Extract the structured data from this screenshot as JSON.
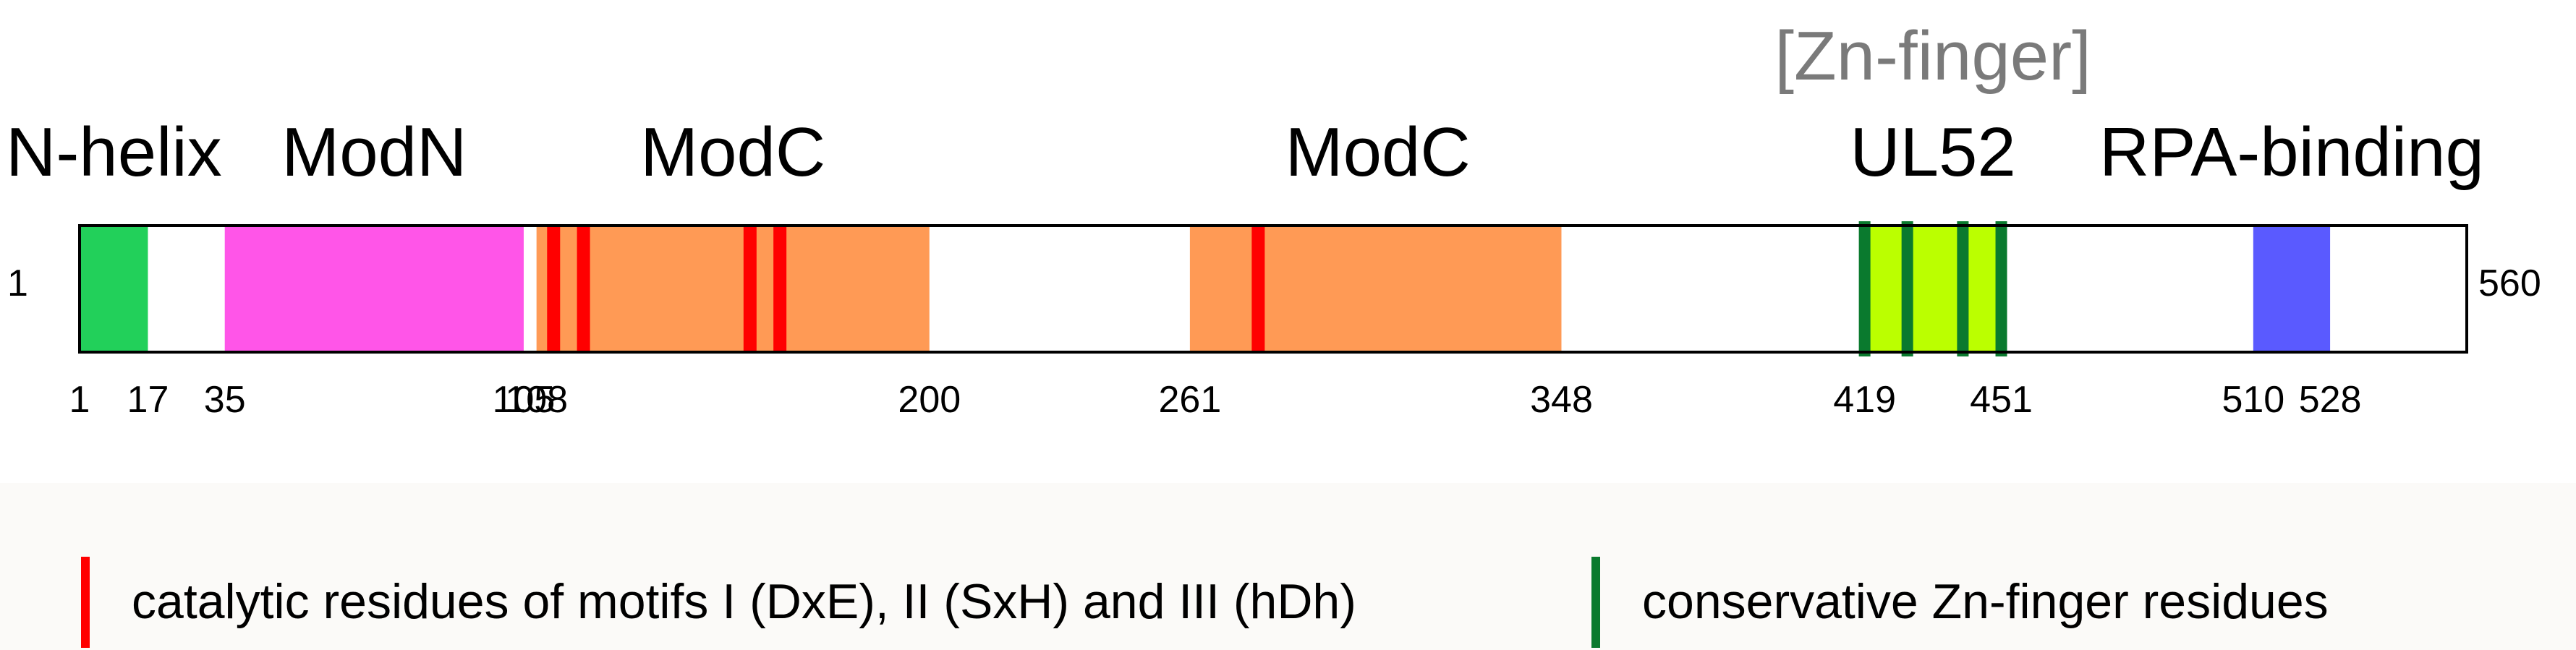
{
  "protein": {
    "length": 560,
    "start_label": "1",
    "end_label": "560"
  },
  "domain_labels": [
    {
      "id": "n-helix",
      "text": "N-helix",
      "center": 9
    },
    {
      "id": "modn",
      "text": "ModN",
      "center": 70
    },
    {
      "id": "modc-1",
      "text": "ModC",
      "center": 154
    },
    {
      "id": "modc-2",
      "text": "ModC",
      "center": 305
    },
    {
      "id": "zn-finger",
      "text": "[Zn-finger]",
      "center": 435,
      "muted": true,
      "row": "upper"
    },
    {
      "id": "ul52",
      "text": "UL52",
      "center": 435
    },
    {
      "id": "rpa-binding",
      "text": "RPA-binding",
      "center": 519
    }
  ],
  "segments": [
    {
      "id": "n-helix",
      "start": 1,
      "end": 17,
      "color": "#22d05a"
    },
    {
      "id": "modn",
      "start": 35,
      "end": 105,
      "color": "#ff55e8"
    },
    {
      "id": "modc-1",
      "start": 108,
      "end": 200,
      "color": "#ff9a55"
    },
    {
      "id": "modc-2",
      "start": 261,
      "end": 348,
      "color": "#ff9a55"
    },
    {
      "id": "ul52",
      "start": 419,
      "end": 451,
      "color": "#bbff00"
    },
    {
      "id": "rpa-binding",
      "start": 510,
      "end": 528,
      "color": "#5a5aff"
    }
  ],
  "catalytic_residues": [
    112,
    119,
    158,
    165,
    277
  ],
  "zn_finger_residues": [
    419,
    429,
    442,
    451
  ],
  "ticks": [
    "1",
    "17",
    "35",
    "105",
    "108",
    "200",
    "261",
    "348",
    "419",
    "451",
    "510",
    "528"
  ],
  "colors": {
    "catalytic": "#ff0000",
    "zn_finger": "#0a7a2e",
    "outline": "#000000"
  },
  "legend": {
    "catalytic": "catalytic residues of motifs I (DxE), II (SxH) and III (hDh)",
    "zn_finger": "conservative Zn-finger residues"
  }
}
